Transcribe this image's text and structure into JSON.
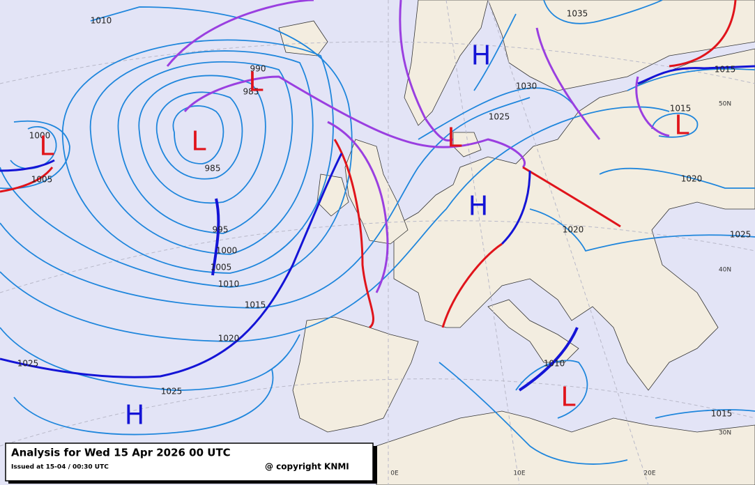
{
  "title": "Analysis for Wed 15 Apr 2026 00 UTC",
  "issued": "Issued at 15-04 / 00:30 UTC",
  "copyright": "@ copyright KNMI",
  "isobar_labels": [
    "1010",
    "1035",
    "990",
    "985",
    "1030",
    "1025",
    "1015",
    "1015",
    "1000",
    "1005",
    "985",
    "1020",
    "1020",
    "1025",
    "995",
    "1000",
    "1005",
    "1010",
    "1015",
    "1020",
    "1025",
    "1025",
    "1010",
    "1015"
  ],
  "graticule_labels": [
    "50N",
    "40N",
    "30N",
    "0E",
    "10E",
    "20E"
  ],
  "pressure_centers": [
    "H",
    "H",
    "H",
    "L",
    "L",
    "L",
    "L",
    "L",
    "L"
  ]
}
